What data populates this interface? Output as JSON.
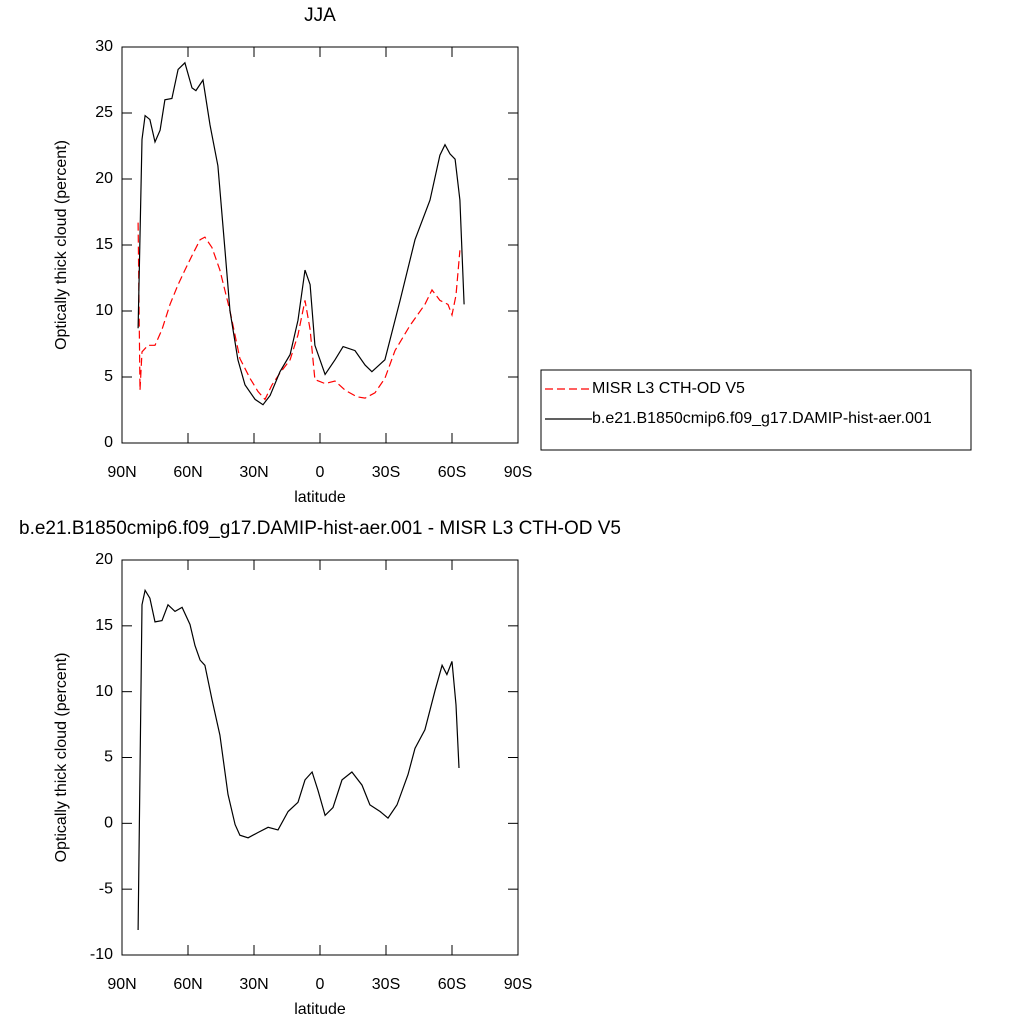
{
  "chart_data": [
    {
      "type": "line",
      "title": "JJA",
      "xlabel": "latitude",
      "ylabel": "Optically thick cloud (percent)",
      "xlim": [
        90,
        -90
      ],
      "xticks": [
        {
          "value": 90,
          "label": "90N"
        },
        {
          "value": 60,
          "label": "60N"
        },
        {
          "value": 30,
          "label": "30N"
        },
        0,
        {
          "value": -30,
          "label": "30S"
        },
        {
          "value": -60,
          "label": "60S"
        },
        {
          "value": -90,
          "label": "90S"
        }
      ],
      "ylim": [
        0,
        30
      ],
      "yticks": [
        0,
        5,
        10,
        15,
        20,
        25,
        30
      ],
      "legend": "right",
      "series": [
        {
          "name": "MISR L3 CTH-OD V5",
          "color": "#ff0000",
          "dash": true,
          "x": [
            82.7,
            81.8,
            80.9,
            78.2,
            75,
            71.8,
            68.2,
            64.5,
            61.4,
            58.2,
            54.5,
            52.3,
            49.1,
            45.5,
            40.9,
            36.4,
            31.8,
            28.2,
            25,
            21.8,
            18.2,
            13.6,
            10,
            6.8,
            4.5,
            2.3,
            -2.3,
            -6.8,
            -11.4,
            -16.8,
            -20.5,
            -25,
            -29.5,
            -34.1,
            -40.9,
            -47.7,
            -50.9,
            -54.5,
            -58.2,
            -60,
            -61.8,
            -63.6
          ],
          "values": [
            16.7,
            4,
            6.9,
            7.4,
            7.4,
            8.6,
            10.5,
            12,
            13.1,
            14.2,
            15.4,
            15.6,
            14.8,
            13.1,
            10,
            6.4,
            4.9,
            3.9,
            3.3,
            4.4,
            5.3,
            6.3,
            8.2,
            10.8,
            8.6,
            4.8,
            4.5,
            4.7,
            4,
            3.5,
            3.4,
            3.8,
            4.9,
            7,
            8.9,
            10.5,
            11.6,
            10.8,
            10.5,
            9.7,
            11.2,
            14.6
          ]
        },
        {
          "name": "b.e21.B1850cmip6.f09_g17.DAMIP-hist-aer.001",
          "color": "#000000",
          "dash": false,
          "x": [
            82.7,
            80.9,
            79.5,
            77.3,
            75,
            72.7,
            70.5,
            67.3,
            64.5,
            61.4,
            58.2,
            56.4,
            53.2,
            50,
            46.4,
            43.2,
            40.9,
            37.3,
            34.1,
            29.5,
            25.9,
            22.7,
            18.2,
            13.6,
            10,
            6.8,
            4.5,
            2.3,
            -2.3,
            -6.8,
            -10.5,
            -15.9,
            -20.5,
            -23.6,
            -29.5,
            -36.4,
            -43.2,
            -50,
            -54.5,
            -56.8,
            -59.1,
            -61.4,
            -63.6,
            -65.5
          ],
          "values": [
            8.7,
            23,
            24.8,
            24.5,
            22.8,
            23.7,
            26,
            26.1,
            28.3,
            28.8,
            26.9,
            26.7,
            27.5,
            24.1,
            21,
            14.6,
            10,
            6.3,
            4.4,
            3.3,
            2.9,
            3.6,
            5.4,
            6.7,
            9.3,
            13.1,
            12,
            7.4,
            5.2,
            6.3,
            7.3,
            7,
            5.9,
            5.4,
            6.3,
            10.8,
            15.4,
            18.4,
            21.8,
            22.6,
            21.9,
            21.5,
            18.4,
            10.5
          ]
        }
      ]
    },
    {
      "type": "line",
      "title": "b.e21.B1850cmip6.f09_g17.DAMIP-hist-aer.001 - MISR L3 CTH-OD V5",
      "xlabel": "latitude",
      "ylabel": "Optically thick cloud (percent)",
      "xlim": [
        90,
        -90
      ],
      "xticks": [
        {
          "value": 90,
          "label": "90N"
        },
        {
          "value": 60,
          "label": "60N"
        },
        {
          "value": 30,
          "label": "30N"
        },
        0,
        {
          "value": -30,
          "label": "30S"
        },
        {
          "value": -60,
          "label": "60S"
        },
        {
          "value": -90,
          "label": "90S"
        }
      ],
      "ylim": [
        -10,
        20
      ],
      "yticks": [
        -10,
        -5,
        0,
        5,
        10,
        15,
        20
      ],
      "series": [
        {
          "color": "#000000",
          "dash": false,
          "x": [
            82.7,
            80.9,
            79.5,
            77.3,
            75,
            71.8,
            69.1,
            65.9,
            62.7,
            59.1,
            56.8,
            54.5,
            52.3,
            49.1,
            45.5,
            41.8,
            38.6,
            36.4,
            32.7,
            28.2,
            23.6,
            19.1,
            14.5,
            10,
            6.8,
            3.6,
            0.9,
            -2.3,
            -5.9,
            -10,
            -14.5,
            -19.1,
            -22.7,
            -27.3,
            -30.9,
            -35,
            -40,
            -43.2,
            -47.7,
            -52.3,
            -55.5,
            -57.7,
            -60,
            -61.8,
            -63.2
          ],
          "values": [
            -8.1,
            16.6,
            17.7,
            17.1,
            15.3,
            15.4,
            16.6,
            16.1,
            16.4,
            15.1,
            13.5,
            12.4,
            12,
            9.4,
            6.7,
            2.2,
            -0.1,
            -0.9,
            -1.1,
            -0.7,
            -0.3,
            -0.5,
            0.9,
            1.6,
            3.3,
            3.9,
            2.5,
            0.6,
            1.2,
            3.3,
            3.9,
            2.9,
            1.4,
            0.9,
            0.4,
            1.4,
            3.7,
            5.7,
            7.1,
            10.1,
            12,
            11.3,
            12.3,
            9,
            4.2
          ]
        }
      ]
    }
  ]
}
